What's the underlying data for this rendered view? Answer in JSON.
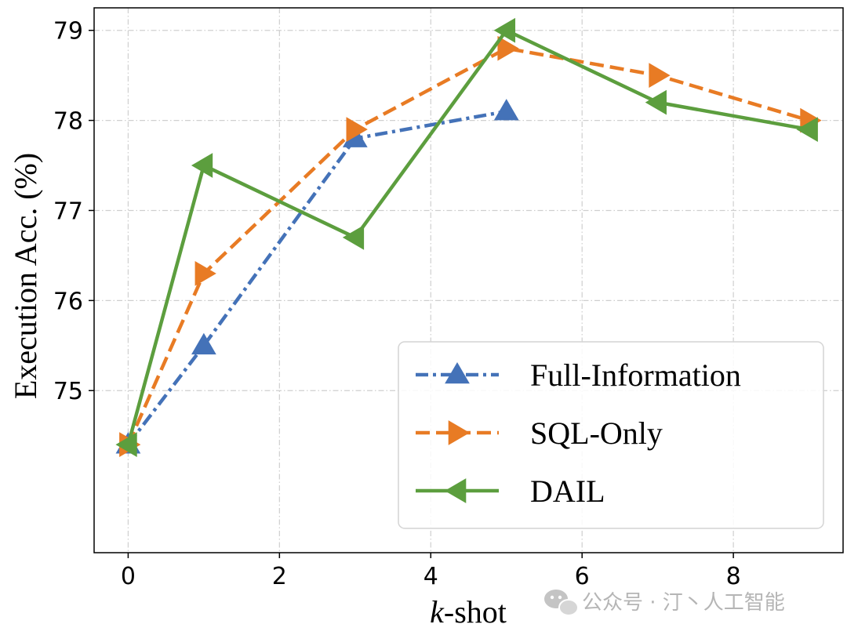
{
  "chart_data": {
    "type": "line",
    "title": "",
    "xlabel_italic": "k",
    "xlabel_rest": "-shot",
    "ylabel": "Execution Acc. (%)",
    "xlim": [
      -0.45,
      9.45
    ],
    "ylim": [
      73.2,
      79.25
    ],
    "xticks": [
      0,
      2,
      4,
      6,
      8
    ],
    "yticks": [
      75,
      76,
      77,
      78,
      79
    ],
    "grid": true,
    "legend_position": "lower-right",
    "series": [
      {
        "name": "Full-Information",
        "color": "#4472b8",
        "line_style": "dash-dot",
        "marker": "triangle-up",
        "x": [
          0,
          1,
          3,
          5
        ],
        "y": [
          74.4,
          75.5,
          77.8,
          78.1
        ]
      },
      {
        "name": "SQL-Only",
        "color": "#e87b24",
        "line_style": "dashed",
        "marker": "triangle-right",
        "x": [
          0,
          1,
          3,
          5,
          7,
          9
        ],
        "y": [
          74.4,
          76.3,
          77.9,
          78.8,
          78.5,
          78.0
        ]
      },
      {
        "name": "DAIL",
        "color": "#5c9e3e",
        "line_style": "solid",
        "marker": "triangle-left",
        "x": [
          0,
          1,
          3,
          5,
          7,
          9
        ],
        "y": [
          74.4,
          77.5,
          76.7,
          79.0,
          78.2,
          77.9
        ]
      }
    ]
  },
  "watermark": {
    "icon": "wechat-icon",
    "text": "公众号 · 汀丶人工智能"
  }
}
